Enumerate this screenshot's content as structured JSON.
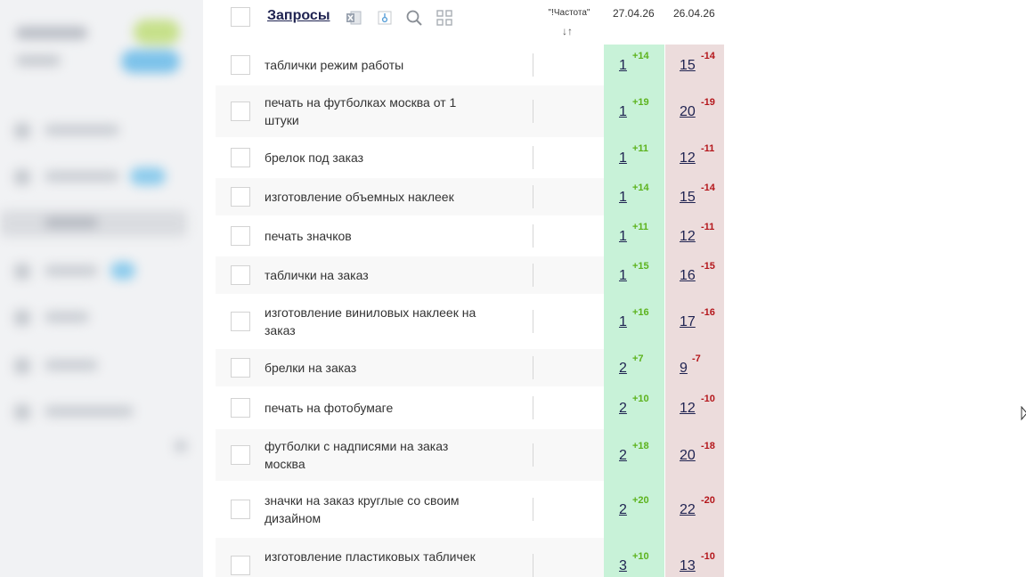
{
  "header": {
    "title": "Запросы",
    "frequency_label": "\"!Частота\"",
    "sort_icon": "↓↑",
    "dates": [
      "27.04.26",
      "26.04.26"
    ]
  },
  "icons": [
    "excel-icon",
    "export-icon",
    "search-icon",
    "grid-icon"
  ],
  "colors": {
    "up": "#5db31e",
    "down": "#b4161b",
    "today_col": "#c8f2d8",
    "prev_col": "#ecdcdc",
    "link": "#1e2250"
  },
  "rows": [
    {
      "query": "таблички режим работы",
      "pos1": "1",
      "d1": "+14",
      "pos2": "15",
      "d2": "-14"
    },
    {
      "query": "печать на футболках москва от 1 штуки",
      "pos1": "1",
      "d1": "+19",
      "pos2": "20",
      "d2": "-19"
    },
    {
      "query": "брелок под заказ",
      "pos1": "1",
      "d1": "+11",
      "pos2": "12",
      "d2": "-11"
    },
    {
      "query": "изготовление объемных наклеек",
      "pos1": "1",
      "d1": "+14",
      "pos2": "15",
      "d2": "-14"
    },
    {
      "query": "печать значков",
      "pos1": "1",
      "d1": "+11",
      "pos2": "12",
      "d2": "-11"
    },
    {
      "query": "таблички на заказ",
      "pos1": "1",
      "d1": "+15",
      "pos2": "16",
      "d2": "-15"
    },
    {
      "query": "изготовление виниловых наклеек на заказ",
      "pos1": "1",
      "d1": "+16",
      "pos2": "17",
      "d2": "-16"
    },
    {
      "query": "брелки на заказ",
      "pos1": "2",
      "d1": "+7",
      "pos2": "9",
      "d2": "-7"
    },
    {
      "query": "печать на фотобумаге",
      "pos1": "2",
      "d1": "+10",
      "pos2": "12",
      "d2": "-10"
    },
    {
      "query": "футболки с надписями на заказ москва",
      "pos1": "2",
      "d1": "+18",
      "pos2": "20",
      "d2": "-18"
    },
    {
      "query": "значки на заказ круглые со своим дизайном",
      "pos1": "2",
      "d1": "+20",
      "pos2": "22",
      "d2": "-20"
    },
    {
      "query": "изготовление пластиковых табличек",
      "pos1": "3",
      "d1": "+10",
      "pos2": "13",
      "d2": "-10"
    }
  ]
}
